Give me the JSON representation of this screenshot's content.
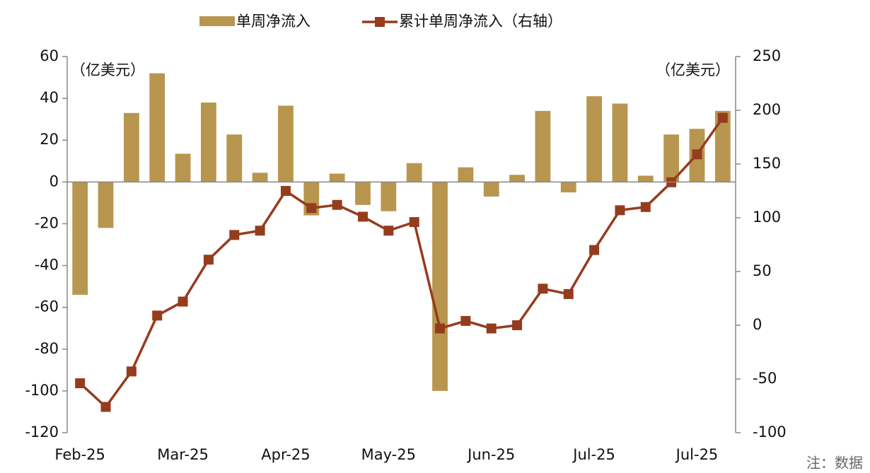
{
  "chart_data": {
    "type": "bar_line",
    "categories": [
      "Feb-25",
      null,
      null,
      null,
      "Mar-25",
      null,
      null,
      null,
      "Apr-25",
      null,
      null,
      null,
      "May-25",
      null,
      null,
      null,
      "Jun-25",
      null,
      null,
      null,
      "Jul-25",
      null,
      null,
      null,
      "Jul-25",
      null
    ],
    "series": [
      {
        "name": "单周净流入",
        "type": "bar",
        "color": "#b8964f",
        "values": [
          -54,
          -22,
          33,
          52,
          13.5,
          38,
          22.7,
          4.4,
          36.5,
          -16,
          4,
          -11,
          -14,
          9,
          -100,
          7,
          -7,
          3.4,
          34,
          -5,
          41,
          37.5,
          3,
          22.7,
          25.4,
          34
        ]
      },
      {
        "name": "累计单周净流入（右轴）",
        "type": "line",
        "axis": "y2",
        "color": "#963c1e",
        "values": [
          -54,
          -76,
          -43,
          9,
          22,
          61,
          84,
          88,
          125,
          109,
          112,
          101,
          88,
          96,
          -3,
          4,
          -3,
          0,
          34,
          29,
          70,
          107,
          110,
          133,
          159,
          193
        ]
      }
    ],
    "ylim": [
      -120,
      60
    ],
    "yticks": [
      -120,
      -100,
      -80,
      -60,
      -40,
      -20,
      0,
      20,
      40,
      60
    ],
    "y2lim": [
      -100,
      250
    ],
    "y2ticks": [
      -100,
      -50,
      0,
      50,
      100,
      150,
      200,
      250
    ],
    "ylabel": "（亿美元）",
    "y2label": "（亿美元）",
    "note": "注：数据",
    "legend": "top"
  }
}
